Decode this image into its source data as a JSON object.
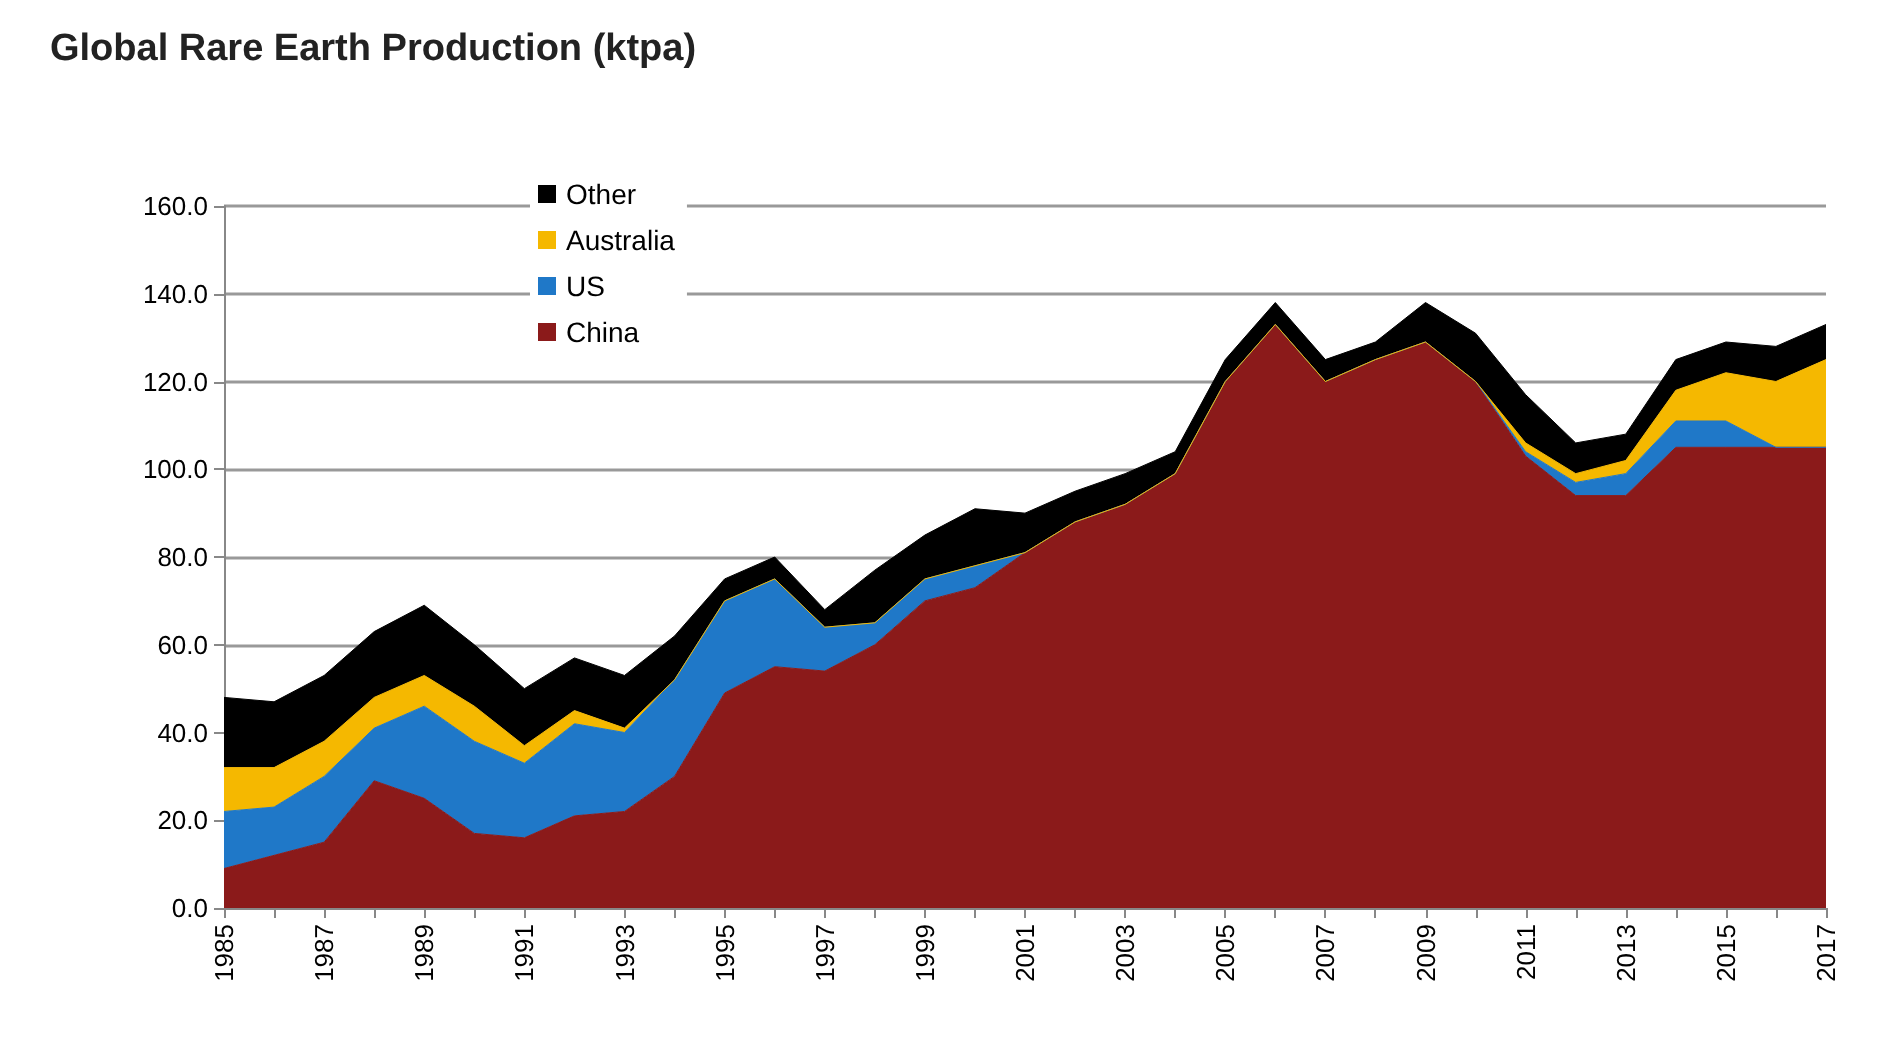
{
  "chart_data": {
    "type": "area",
    "title": "Global Rare Earth Production (ktpa)",
    "stacked": true,
    "legend": "top left",
    "grid": "y",
    "marker": "none",
    "categories": [
      "1985",
      null,
      "1987",
      null,
      "1989",
      null,
      "1991",
      null,
      "1993",
      null,
      "1995",
      null,
      "1997",
      null,
      "1999",
      null,
      "2001",
      null,
      "2003",
      null,
      "2005",
      null,
      "2007",
      null,
      "2009",
      null,
      "2011",
      null,
      "2013",
      null,
      "2015",
      null,
      "2017"
    ],
    "ylim": [
      0,
      160
    ],
    "yticks": [
      {
        "value": 0,
        "label": "0.0"
      },
      {
        "value": 20,
        "label": "20.0"
      },
      {
        "value": 40,
        "label": "40.0"
      },
      {
        "value": 60,
        "label": "60.0"
      },
      {
        "value": 80,
        "label": "80.0"
      },
      {
        "value": 100,
        "label": "100.0"
      },
      {
        "value": 120,
        "label": "120.0"
      },
      {
        "value": 140,
        "label": "140.0"
      },
      {
        "value": 160,
        "label": "160.0"
      }
    ],
    "series": [
      {
        "name": "China",
        "color": "#8b1a1a",
        "values": [
          9,
          12,
          15,
          29,
          25,
          17,
          16,
          21,
          22,
          30,
          49,
          55,
          54,
          60,
          70,
          73,
          81,
          88,
          92,
          99,
          120,
          133,
          120,
          125,
          129,
          120,
          103,
          94,
          94,
          105,
          105,
          105,
          105
        ]
      },
      {
        "name": "US",
        "color": "#1f78c8",
        "values": [
          13,
          11,
          15,
          12,
          21,
          21,
          17,
          21,
          18,
          22,
          21,
          20,
          10,
          5,
          5,
          5,
          0,
          0,
          0,
          0,
          0,
          0,
          0,
          0,
          0,
          0,
          1,
          3,
          5,
          6,
          6,
          0,
          0
        ]
      },
      {
        "name": "Australia",
        "color": "#f5b800",
        "values": [
          10,
          9,
          8,
          7,
          7,
          8,
          4,
          3,
          1,
          0,
          0,
          0,
          0,
          0,
          0,
          0,
          0,
          0,
          0,
          0,
          0,
          0,
          0,
          0,
          0,
          0,
          2,
          2,
          3,
          7,
          11,
          15,
          20
        ]
      },
      {
        "name": "Other",
        "color": "#000000",
        "values": [
          16,
          15,
          15,
          15,
          16,
          14,
          13,
          12,
          12,
          10,
          5,
          5,
          4,
          12,
          10,
          13,
          9,
          7,
          7,
          5,
          5,
          5,
          5,
          4,
          9,
          11,
          11,
          7,
          6,
          7,
          7,
          8,
          8
        ]
      }
    ]
  }
}
